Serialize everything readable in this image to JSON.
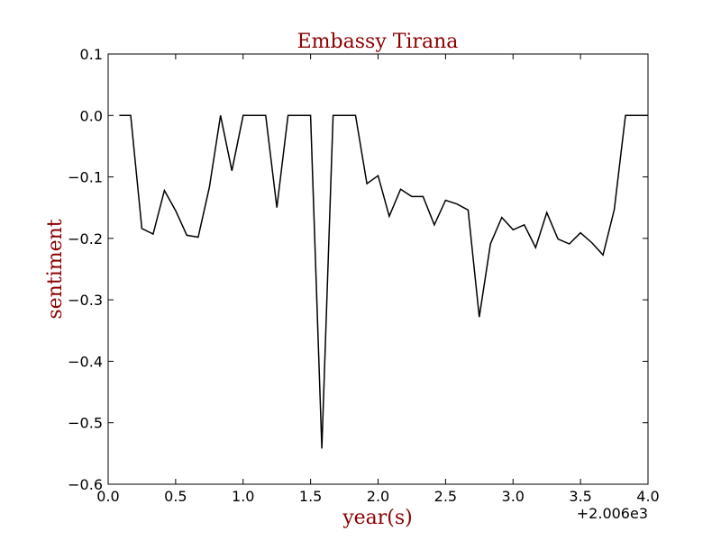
{
  "chart_data": {
    "type": "line",
    "title": "Embassy Tirana",
    "xlabel": "year(s)",
    "ylabel": "sentiment",
    "x_offset_label": "+2.006e3",
    "xlim": [
      0.0,
      4.0
    ],
    "ylim": [
      -0.6,
      0.1
    ],
    "x_ticks": [
      0.0,
      0.5,
      1.0,
      1.5,
      2.0,
      2.5,
      3.0,
      3.5,
      4.0
    ],
    "x_tick_labels": [
      "0.0",
      "0.5",
      "1.0",
      "1.5",
      "2.0",
      "2.5",
      "3.0",
      "3.5",
      "4.0"
    ],
    "y_ticks": [
      0.1,
      0.0,
      -0.1,
      -0.2,
      -0.3,
      -0.4,
      -0.5,
      -0.6
    ],
    "y_tick_labels": [
      "0.1",
      "0.0",
      "−0.1",
      "−0.2",
      "−0.3",
      "−0.4",
      "−0.5",
      "−0.6"
    ],
    "grid": false,
    "colors": {
      "line": "#000000",
      "title": "#8b0000",
      "axis_label": "#8b0000"
    },
    "series": [
      {
        "x": [
          0.083,
          0.167,
          0.25,
          0.333,
          0.417,
          0.5,
          0.583,
          0.667,
          0.75,
          0.833,
          0.917,
          1.0,
          1.083,
          1.167,
          1.25,
          1.333,
          1.417,
          1.5,
          1.583,
          1.667,
          1.75,
          1.833,
          1.917,
          2.0,
          2.083,
          2.167,
          2.25,
          2.333,
          2.417,
          2.5,
          2.583,
          2.667,
          2.75,
          2.833,
          2.917,
          3.0,
          3.083,
          3.167,
          3.25,
          3.333,
          3.417,
          3.5,
          3.583,
          3.667,
          3.75,
          3.833,
          3.917,
          4.0
        ],
        "values": [
          0.0,
          0.0,
          -0.184,
          -0.193,
          -0.122,
          -0.155,
          -0.195,
          -0.198,
          -0.117,
          0.0,
          -0.09,
          0.0,
          0.0,
          0.0,
          -0.15,
          0.0,
          0.0,
          0.0,
          -0.542,
          0.0,
          0.0,
          0.0,
          -0.111,
          -0.098,
          -0.164,
          -0.12,
          -0.132,
          -0.132,
          -0.178,
          -0.138,
          -0.144,
          -0.154,
          -0.328,
          -0.209,
          -0.166,
          -0.186,
          -0.178,
          -0.215,
          -0.158,
          -0.201,
          -0.209,
          -0.191,
          -0.207,
          -0.227,
          -0.153,
          0.0,
          0.0,
          0.0
        ]
      }
    ]
  }
}
